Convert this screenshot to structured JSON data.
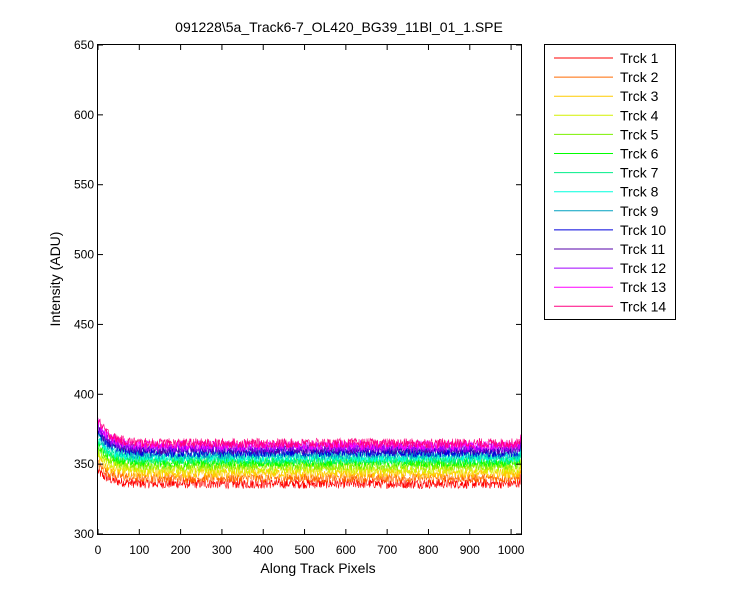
{
  "chart_data": {
    "type": "line",
    "title": "091228\\5a_Track6-7_OL420_BG39_11Bl_01_1.SPE",
    "xlabel": "Along Track Pixels",
    "ylabel": "Intensity (ADU)",
    "xlim": [
      0,
      1024
    ],
    "ylim": [
      300,
      650
    ],
    "xticks": [
      "0",
      "100",
      "200",
      "300",
      "400",
      "500",
      "600",
      "700",
      "800",
      "900",
      "1000"
    ],
    "yticks": [
      "300",
      "350",
      "400",
      "450",
      "500",
      "550",
      "600",
      "650"
    ],
    "grid": false,
    "legend_position": "outside-right",
    "series": [
      {
        "name": "Trck 1",
        "color": "#ff0000",
        "level": 336.0,
        "start": 345
      },
      {
        "name": "Trck 2",
        "color": "#ff6a00",
        "level": 340.0,
        "start": 350
      },
      {
        "name": "Trck 3",
        "color": "#ffcc00",
        "level": 343.5,
        "start": 354
      },
      {
        "name": "Trck 4",
        "color": "#d4f000",
        "level": 346.5,
        "start": 358
      },
      {
        "name": "Trck 5",
        "color": "#7cf000",
        "level": 349.0,
        "start": 361
      },
      {
        "name": "Trck 6",
        "color": "#00ff00",
        "level": 351.5,
        "start": 364
      },
      {
        "name": "Trck 7",
        "color": "#00ee88",
        "level": 353.5,
        "start": 367
      },
      {
        "name": "Trck 8",
        "color": "#00ffdd",
        "level": 355.0,
        "start": 369
      },
      {
        "name": "Trck 9",
        "color": "#00a0c0",
        "level": 357.0,
        "start": 372
      },
      {
        "name": "Trck 10",
        "color": "#0000dd",
        "level": 358.5,
        "start": 374
      },
      {
        "name": "Trck 11",
        "color": "#5500aa",
        "level": 360.5,
        "start": 376
      },
      {
        "name": "Trck 12",
        "color": "#a000ff",
        "level": 362.0,
        "start": 378
      },
      {
        "name": "Trck 13",
        "color": "#ff00ff",
        "level": 363.5,
        "start": 380
      },
      {
        "name": "Trck 14",
        "color": "#ff0080",
        "level": 365.0,
        "start": 382
      }
    ]
  }
}
